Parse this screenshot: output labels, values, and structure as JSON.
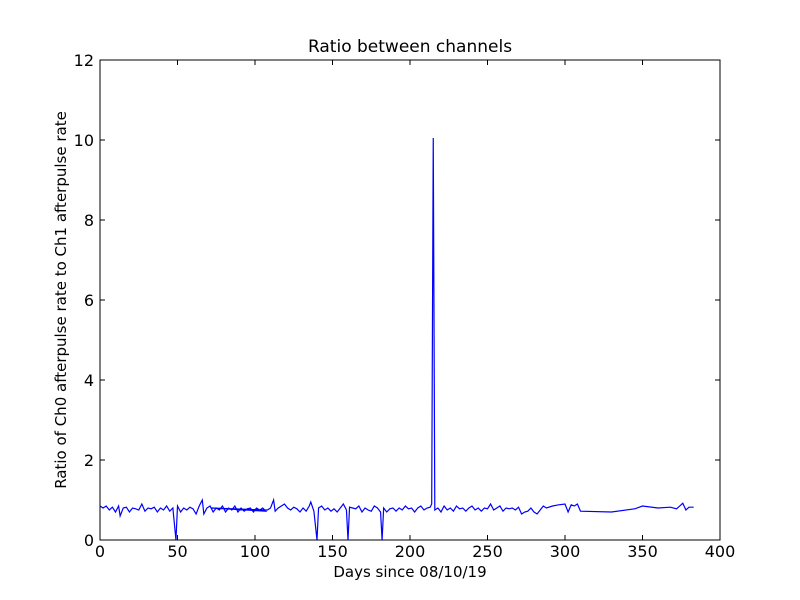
{
  "chart_data": {
    "type": "line",
    "title": "Ratio between channels",
    "xlabel": "Days since 08/10/19",
    "ylabel": "Ratio of Ch0 afterpulse rate to Ch1 afterpulse rate",
    "x": [
      0,
      2,
      4,
      6,
      8,
      10,
      12,
      13,
      15,
      17,
      19,
      21,
      23,
      25,
      27,
      29,
      31,
      33,
      35,
      37,
      39,
      41,
      43,
      45,
      47,
      49,
      50,
      52,
      54,
      56,
      58,
      60,
      62,
      64,
      66,
      67,
      69,
      71,
      73,
      75,
      77,
      79,
      81,
      83,
      85,
      87,
      89,
      91,
      93,
      95,
      97,
      99,
      101,
      103,
      105,
      107,
      72,
      108,
      110,
      112,
      113,
      115,
      117,
      119,
      121,
      123,
      125,
      127,
      129,
      131,
      133,
      135,
      136,
      138,
      140,
      141,
      143,
      145,
      147,
      149,
      151,
      153,
      155,
      157,
      159,
      160,
      161,
      163,
      165,
      167,
      169,
      171,
      173,
      175,
      177,
      179,
      181,
      182,
      183,
      185,
      187,
      189,
      191,
      193,
      195,
      197,
      199,
      201,
      203,
      205,
      207,
      209,
      211,
      213,
      214,
      215,
      216,
      218,
      220,
      222,
      224,
      226,
      228,
      230,
      232,
      234,
      236,
      238,
      240,
      242,
      244,
      246,
      248,
      250,
      252,
      254,
      256,
      258,
      260,
      262,
      264,
      266,
      268,
      270,
      272,
      274,
      276,
      278,
      280,
      282,
      284,
      286,
      288,
      292,
      296,
      300,
      302,
      304,
      306,
      308,
      310,
      330,
      345,
      350,
      360,
      368,
      372,
      376,
      378,
      380,
      383
    ],
    "series": [
      {
        "name": "ratio",
        "color": "#0000ff",
        "values": [
          0.85,
          0.8,
          0.85,
          0.75,
          0.82,
          0.7,
          0.85,
          0.6,
          0.8,
          0.82,
          0.7,
          0.8,
          0.78,
          0.75,
          0.9,
          0.72,
          0.8,
          0.78,
          0.82,
          0.7,
          0.8,
          0.75,
          0.85,
          0.72,
          0.8,
          0,
          0.85,
          0.7,
          0.8,
          0.75,
          0.82,
          0.78,
          0.65,
          0.85,
          1.0,
          0.65,
          0.8,
          0.85,
          0.7,
          0.8,
          0.75,
          0.85,
          0.7,
          0.8,
          0.75,
          0.85,
          0.7,
          0.8,
          0.72,
          0.78,
          0.8,
          0.7,
          0.8,
          0.75,
          0.8,
          0.72,
          0.8,
          0.75,
          0.8,
          1.0,
          0.72,
          0.8,
          0.85,
          0.9,
          0.8,
          0.75,
          0.82,
          0.78,
          0.7,
          0.8,
          0.72,
          0.85,
          0.95,
          0.72,
          0,
          0.8,
          0.85,
          0.75,
          0.8,
          0.72,
          0.78,
          0.7,
          0.8,
          0.9,
          0.75,
          0,
          0.82,
          0.8,
          0.78,
          0.85,
          0.7,
          0.8,
          0.75,
          0.72,
          0.85,
          0.8,
          0.7,
          0,
          0.8,
          0.7,
          0.78,
          0.8,
          0.72,
          0.8,
          0.75,
          0.85,
          0.78,
          0.8,
          0.7,
          0.8,
          0.85,
          0.75,
          0.8,
          0.82,
          0.9,
          10.05,
          0.75,
          0.8,
          0.7,
          0.85,
          0.75,
          0.8,
          0.72,
          0.85,
          0.78,
          0.8,
          0.72,
          0.8,
          0.85,
          0.75,
          0.8,
          0.72,
          0.8,
          0.78,
          0.9,
          0.75,
          0.8,
          0.85,
          0.72,
          0.8,
          0.78,
          0.8,
          0.75,
          0.82,
          0.65,
          0.7,
          0.72,
          0.8,
          0.7,
          0.65,
          0.75,
          0.85,
          0.8,
          0.85,
          0.88,
          0.9,
          0.7,
          0.88,
          0.85,
          0.9,
          0.72,
          0.7,
          0.78,
          0.85,
          0.8,
          0.82,
          0.78,
          0.92,
          0.75,
          0.82,
          0.82
        ]
      }
    ],
    "xlim": [
      0,
      400
    ],
    "xticks": [
      0,
      50,
      100,
      150,
      200,
      250,
      300,
      350,
      400
    ],
    "ylim": [
      0,
      12
    ],
    "yticks": [
      0,
      2,
      4,
      6,
      8,
      10,
      12
    ]
  }
}
